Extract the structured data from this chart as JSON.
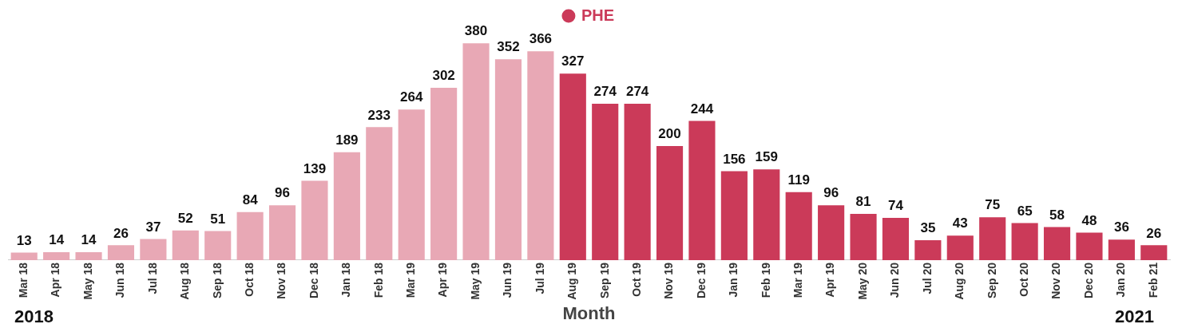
{
  "chart_data": {
    "type": "bar",
    "xlabel": "Month",
    "categories": [
      "Mar 18",
      "Apr 18",
      "May 18",
      "Jun 18",
      "Jul 18",
      "Aug 18",
      "Sep 18",
      "Oct 18",
      "Nov 18",
      "Dec 18",
      "Jan 18",
      "Feb 18",
      "Mar 19",
      "Apr 19",
      "May 19",
      "Jun 19",
      "Jul 19",
      "Aug 19",
      "Sep 19",
      "Oct 19",
      "Nov 19",
      "Dec 19",
      "Jan 19",
      "Feb 19",
      "Mar 19",
      "Apr 19",
      "May 20",
      "Jun 20",
      "Jul 20",
      "Aug 20",
      "Sep 20",
      "Oct 20",
      "Nov 20",
      "Dec 20",
      "Jan 20",
      "Feb 21"
    ],
    "series": [
      {
        "color": "#e8a8b5",
        "values": [
          13,
          14,
          14,
          26,
          37,
          52,
          51,
          84,
          96,
          139,
          189,
          233,
          264,
          302,
          380,
          352,
          366,
          null,
          null,
          null,
          null,
          null,
          null,
          null,
          null,
          null,
          null,
          null,
          null,
          null,
          null,
          null,
          null,
          null,
          null,
          null
        ]
      },
      {
        "name": "PHE",
        "color": "#cb3a59",
        "values": [
          null,
          null,
          null,
          null,
          null,
          null,
          null,
          null,
          null,
          null,
          null,
          null,
          null,
          null,
          null,
          null,
          null,
          327,
          274,
          274,
          200,
          244,
          156,
          159,
          119,
          96,
          81,
          74,
          35,
          43,
          75,
          65,
          58,
          48,
          36,
          26
        ]
      }
    ],
    "data_labels": true,
    "legend": "top",
    "grid": false,
    "tick_labels": "x",
    "annotations": [
      "2018",
      "2021"
    ]
  }
}
